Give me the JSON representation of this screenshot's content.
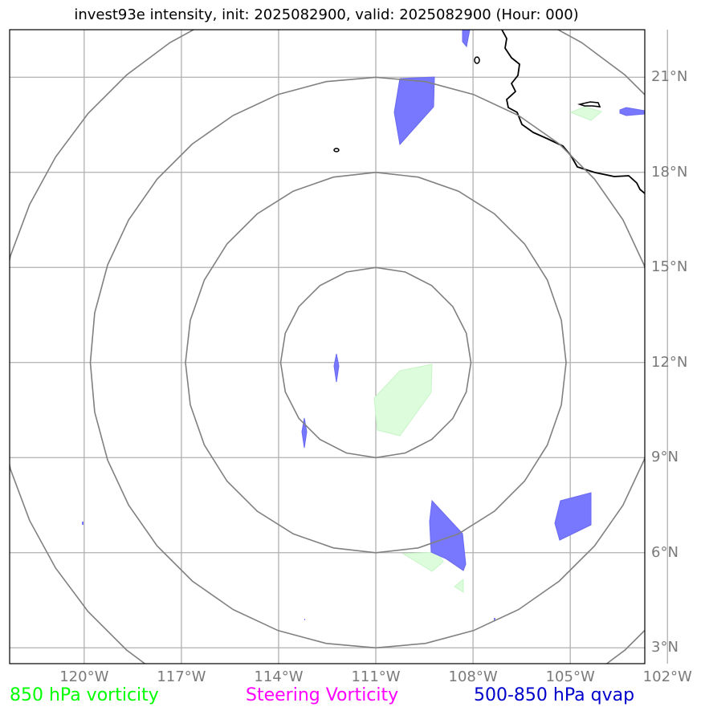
{
  "title": "invest93e intensity, init: 2025082900, valid: 2025082900 (Hour: 000)",
  "map": {
    "lat_range": [
      2.5,
      22.5
    ],
    "lon_range": [
      -122.3,
      -102.7
    ],
    "storm_center": {
      "lat": 12.0,
      "lon": -111.0
    },
    "lat_ticks": [
      {
        "value": 3,
        "label": "3°N"
      },
      {
        "value": 6,
        "label": "6°N"
      },
      {
        "value": 9,
        "label": "9°N"
      },
      {
        "value": 12,
        "label": "12°N"
      },
      {
        "value": 15,
        "label": "15°N"
      },
      {
        "value": 18,
        "label": "18°N"
      },
      {
        "value": 21,
        "label": "21°N"
      }
    ],
    "lon_ticks": [
      {
        "value": -120,
        "label": "120°W"
      },
      {
        "value": -117,
        "label": "117°W"
      },
      {
        "value": -114,
        "label": "114°W"
      },
      {
        "value": -111,
        "label": "111°W"
      },
      {
        "value": -108,
        "label": "108°W"
      },
      {
        "value": -105,
        "label": "105°W"
      },
      {
        "value": -102,
        "label": "102°W"
      }
    ],
    "grid": true,
    "range_rings": 4
  },
  "legend": [
    {
      "label": "850 hPa vorticity",
      "color": "#00ff00"
    },
    {
      "label": "Steering Vorticity",
      "color": "#ff00ff"
    },
    {
      "label": "500-850 hPa qvap",
      "color": "#0000cc"
    }
  ],
  "colors": {
    "grid": "#b0b0b0",
    "rings": "#808080",
    "coast": "#000000",
    "qvap_fill": "#7878ff",
    "vort_fill": "#dcfcdc",
    "tick_label": "#7a7a7a"
  }
}
